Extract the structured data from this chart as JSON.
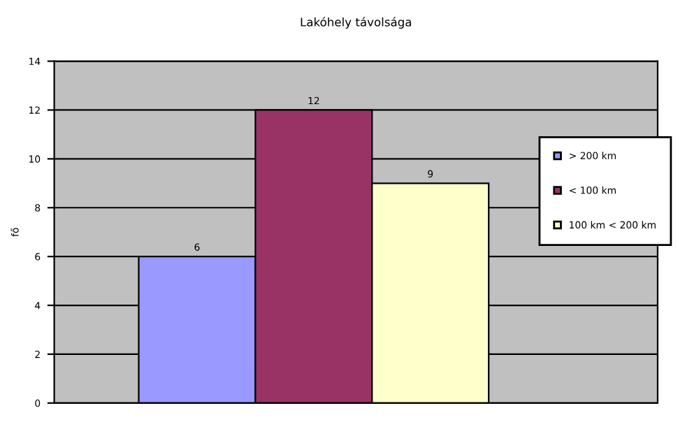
{
  "chart_data": {
    "type": "bar",
    "title": "Lakóhely távolsága",
    "ylabel": "fő",
    "categories": [
      null
    ],
    "series": [
      {
        "name": "> 200 km",
        "color": "#9999ff",
        "values": [
          6
        ]
      },
      {
        "name": "< 100 km",
        "color": "#993366",
        "values": [
          12
        ]
      },
      {
        "name": "100 km < 200 km",
        "color": "#ffffcc",
        "values": [
          9
        ]
      }
    ],
    "ylim": [
      0,
      14
    ],
    "yticks": [
      0,
      2,
      4,
      6,
      8,
      10,
      12,
      14
    ],
    "grid": "y",
    "legend": "right",
    "data_labels": true
  }
}
